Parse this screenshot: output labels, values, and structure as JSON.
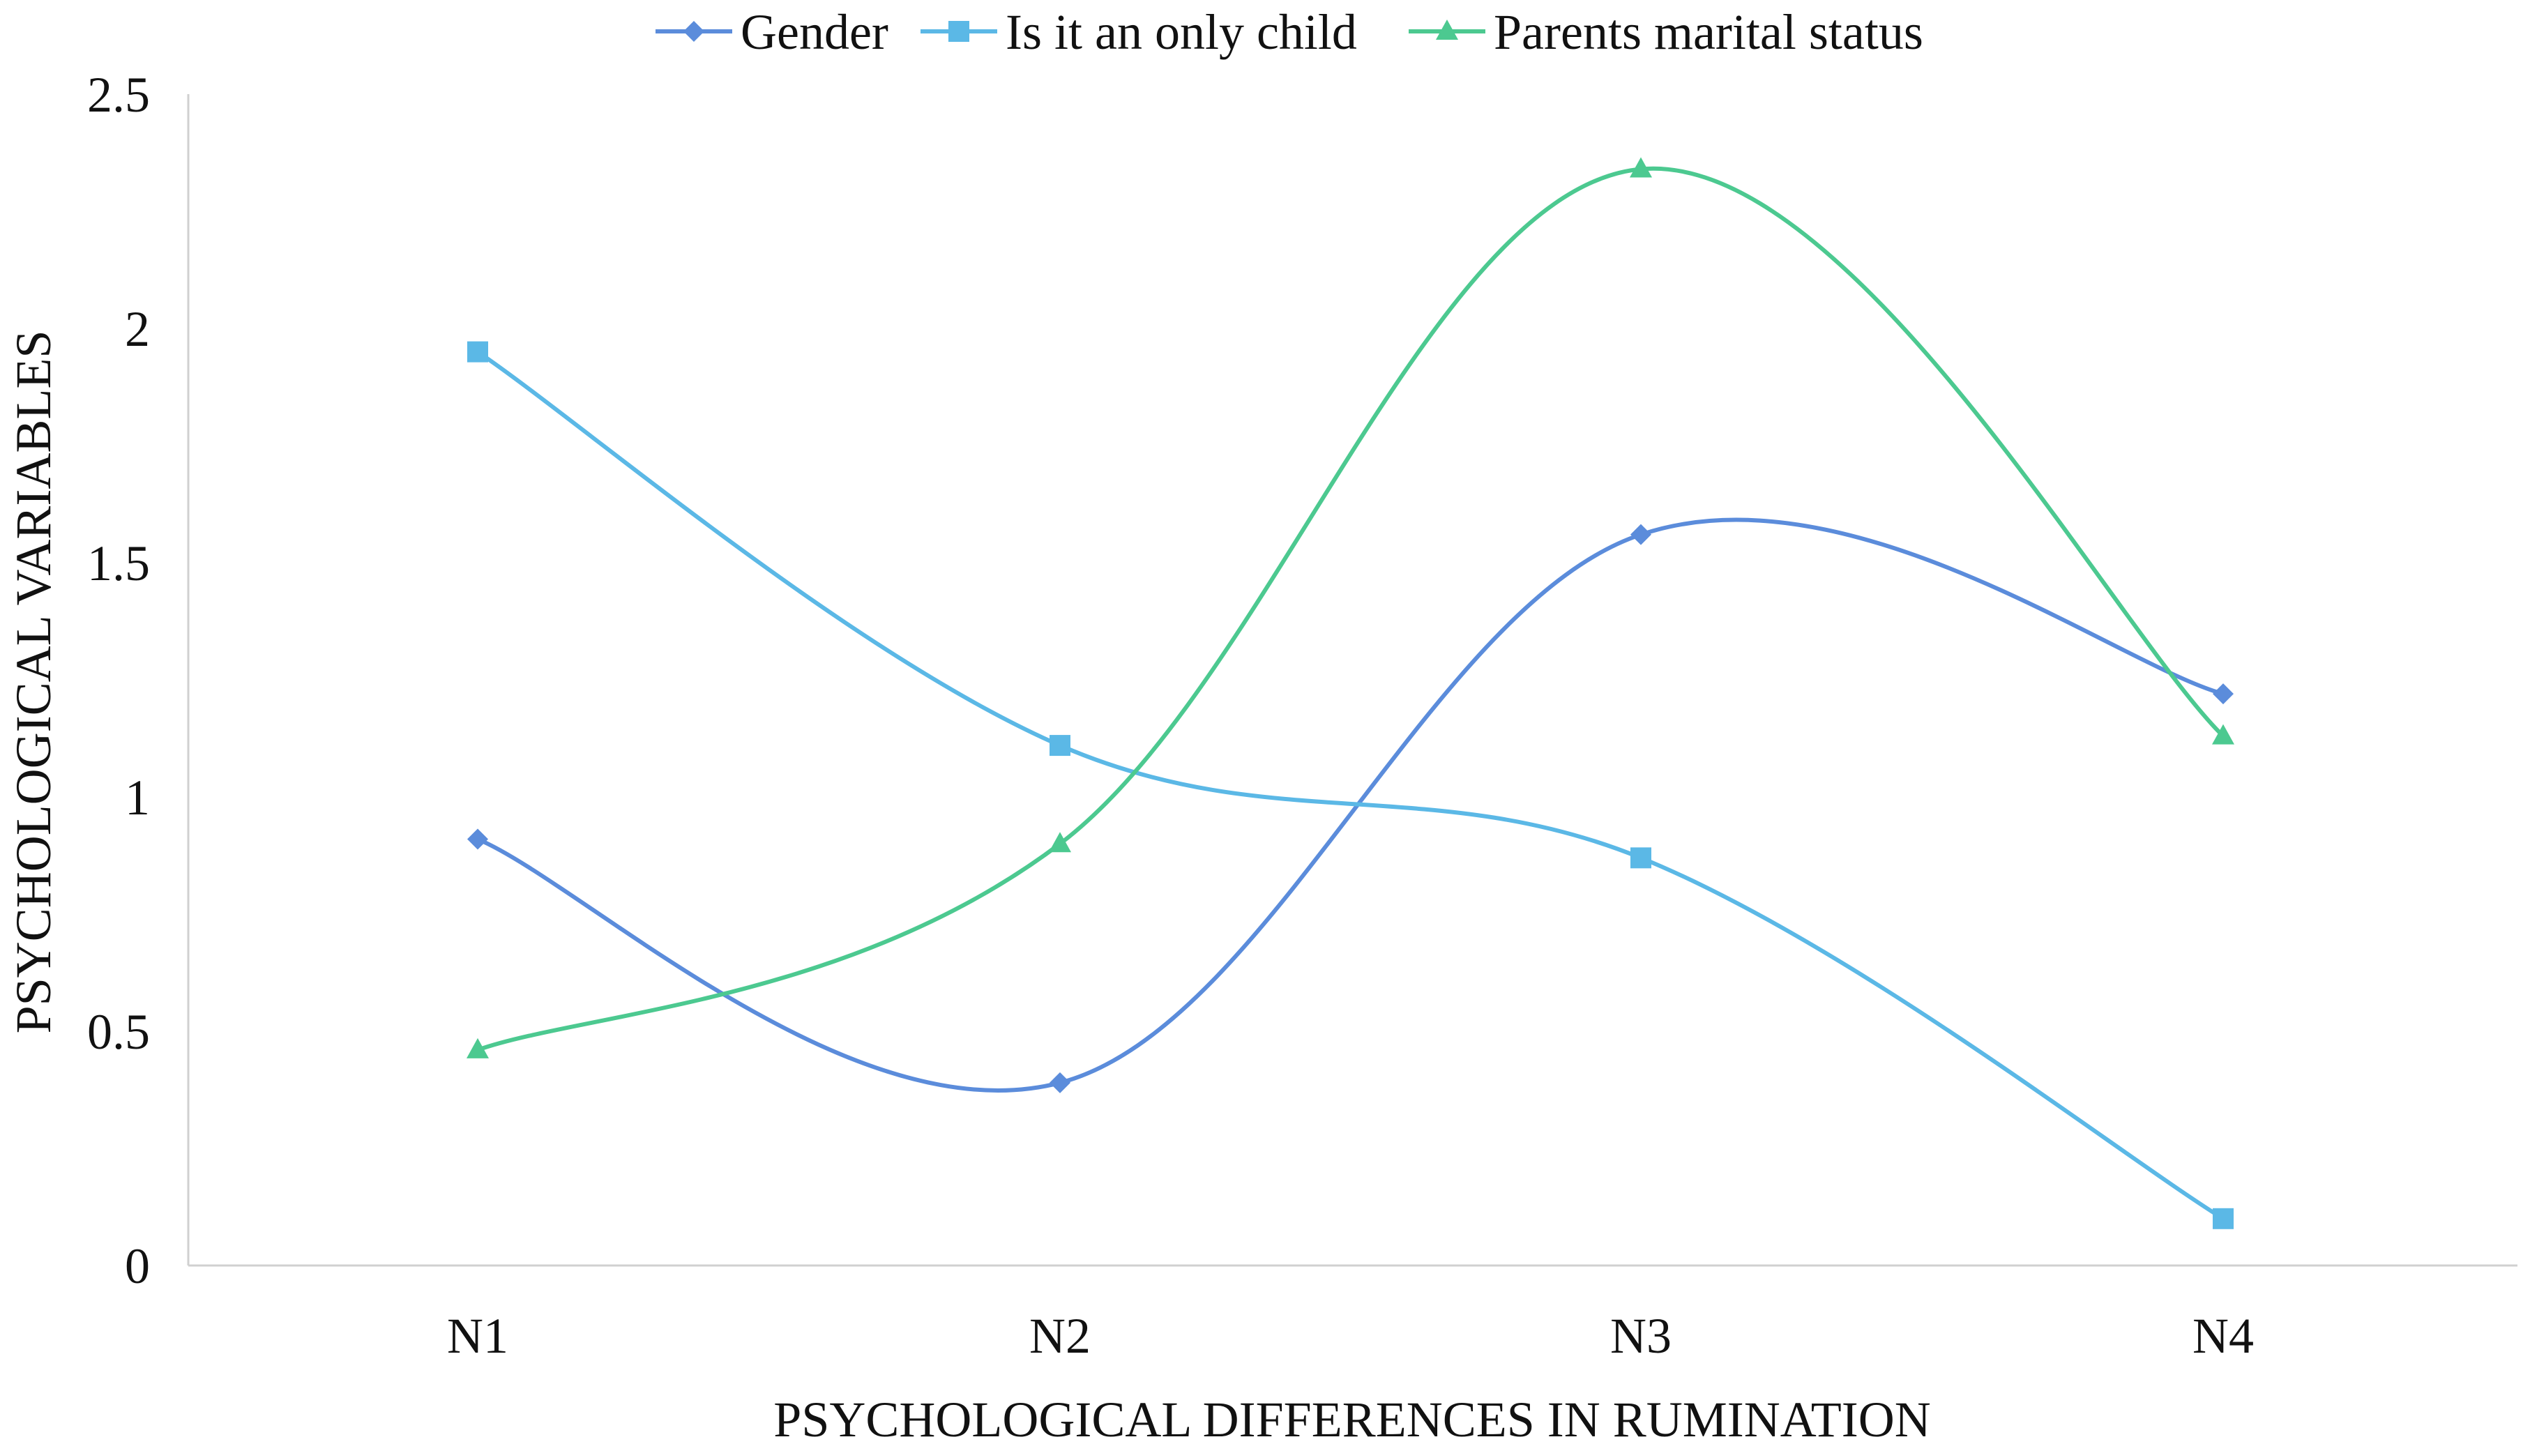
{
  "chart_data": {
    "type": "line",
    "smooth": true,
    "categories": [
      "N1",
      "N2",
      "N3",
      "N4"
    ],
    "series": [
      {
        "name": "Gender",
        "values": [
          0.91,
          0.39,
          1.56,
          1.22
        ],
        "color": "#5B8CDB",
        "marker": "diamond"
      },
      {
        "name": "Is it an only child",
        "values": [
          1.95,
          1.11,
          0.87,
          0.1
        ],
        "color": "#5BB8E6",
        "marker": "square"
      },
      {
        "name": "Parents marital status",
        "values": [
          0.46,
          0.9,
          2.34,
          1.13
        ],
        "color": "#4CC990",
        "marker": "triangle"
      }
    ],
    "title": "",
    "xlabel": "PSYCHOLOGICAL DIFFERENCES IN RUMINATION",
    "ylabel": "PSYCHOLOGICAL VARIABLES",
    "ylim": [
      0,
      2.5
    ],
    "yticks": [
      "0",
      "0.5",
      "1",
      "1.5",
      "2",
      "2.5"
    ],
    "grid": false,
    "legend": "top"
  }
}
